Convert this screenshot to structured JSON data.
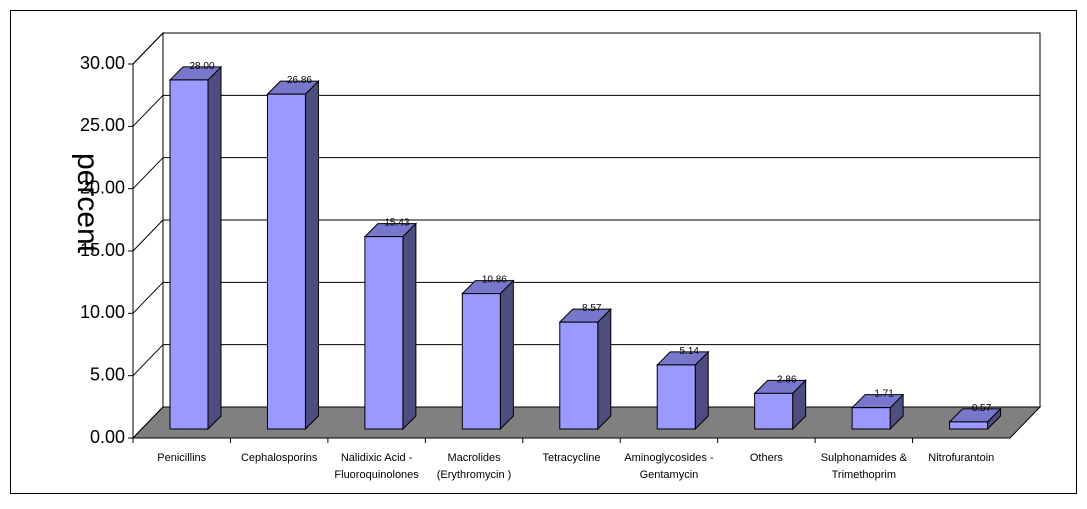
{
  "chart_data": {
    "type": "bar",
    "three_d": true,
    "categories": [
      [
        "Penicillins"
      ],
      [
        "Cephalosporins"
      ],
      [
        "Nalidixic  Acid -",
        "Fluoroquinolones"
      ],
      [
        "Macrolides",
        "(Erythromycin )"
      ],
      [
        "Tetracycline"
      ],
      [
        "Aminoglycosides -",
        "Gentamycin"
      ],
      [
        "Others"
      ],
      [
        "Sulphonamides &",
        "Trimethoprim"
      ],
      [
        "Nitrofurantoin"
      ]
    ],
    "values": [
      28.0,
      26.86,
      15.43,
      10.86,
      8.57,
      5.14,
      2.86,
      1.71,
      0.57
    ],
    "data_labels": [
      "28.00",
      "26.86",
      "15.43",
      "10.86",
      "8.57",
      "5.14",
      "2.86",
      "1.71",
      "0.57"
    ],
    "y_ticks": [
      "0.00",
      "5.00",
      "10.00",
      "15.00",
      "20.00",
      "25.00",
      "30.00"
    ],
    "title": "",
    "xlabel": "",
    "ylabel": "percent",
    "ylim": [
      0,
      30
    ],
    "grid": true,
    "legend": "none",
    "colors": {
      "bar_front": "#9999ff",
      "bar_side": "#4d4d80",
      "bar_top": "#7777cc",
      "floor": "#808080",
      "grid": "#000000",
      "text": "#000000"
    }
  }
}
